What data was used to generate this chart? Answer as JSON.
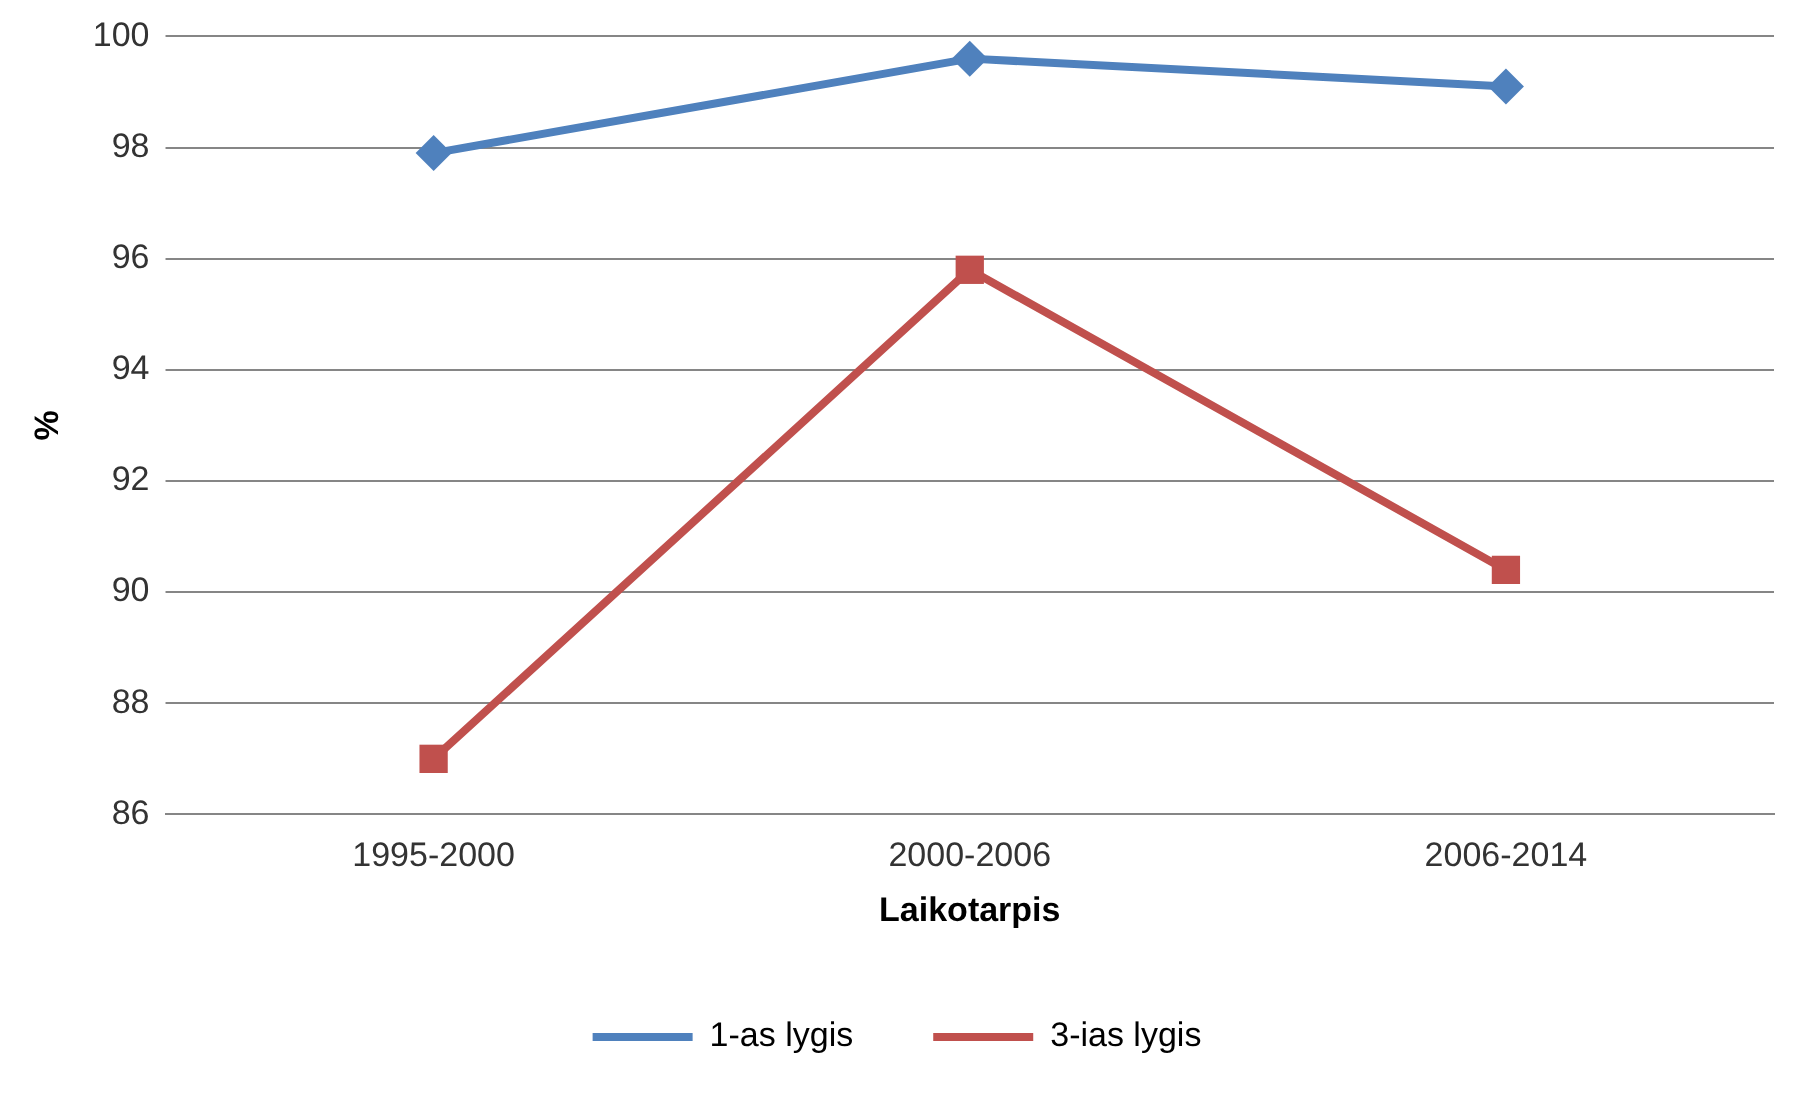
{
  "chart_data": {
    "type": "line",
    "xlabel": "Laikotarpis",
    "ylabel": "%",
    "categories": [
      "1995-2000",
      "2000-2006",
      "2006-2014"
    ],
    "series": [
      {
        "name": "1-as lygis",
        "color": "#4f81bd",
        "marker": "diamond",
        "values": [
          97.9,
          99.6,
          99.1
        ]
      },
      {
        "name": "3-ias lygis",
        "color": "#c0504d",
        "marker": "square",
        "values": [
          87.0,
          95.8,
          90.4
        ]
      }
    ],
    "ylim": [
      86,
      100
    ],
    "yticks": [
      86,
      88,
      90,
      92,
      94,
      96,
      98,
      100
    ],
    "grid": "y",
    "legend": "bottom"
  }
}
